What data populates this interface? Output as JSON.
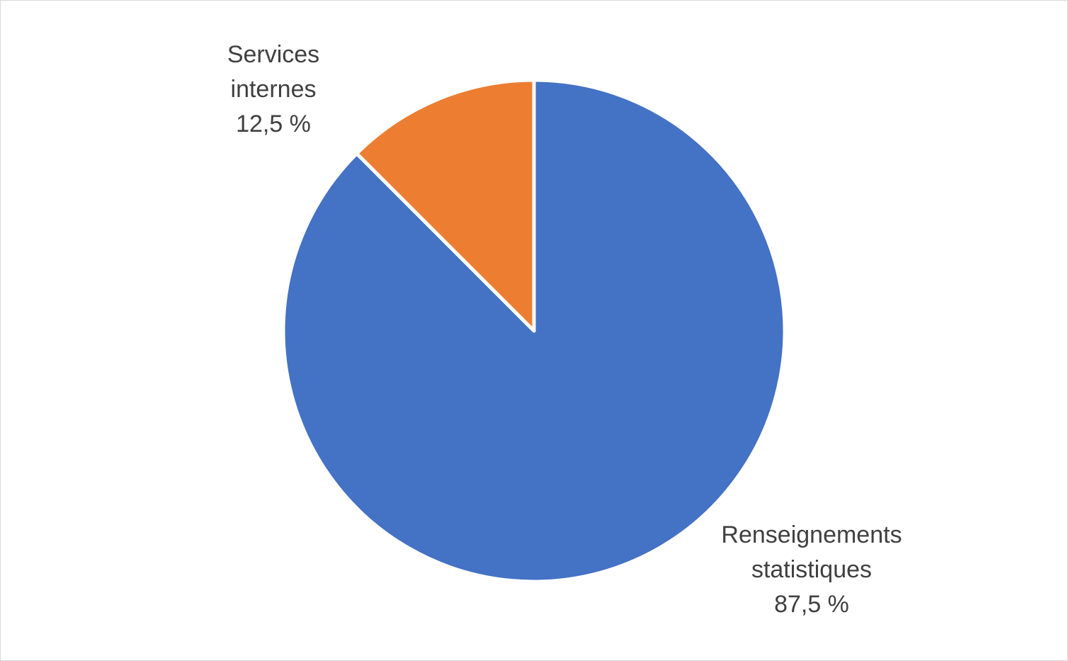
{
  "chart_data": {
    "type": "pie",
    "slices": [
      {
        "name": "Renseignements statistiques",
        "label_lines": [
          "Renseignements",
          "statistiques"
        ],
        "value": 87.5,
        "value_label": "87,5 %",
        "color": "#4472C4"
      },
      {
        "name": "Services internes",
        "label_lines": [
          "Services",
          "internes"
        ],
        "value": 12.5,
        "value_label": "12,5 %",
        "color": "#ED7D31"
      }
    ],
    "start_angle_deg": 0,
    "direction": "clockwise",
    "slice_border_color": "#ffffff"
  }
}
